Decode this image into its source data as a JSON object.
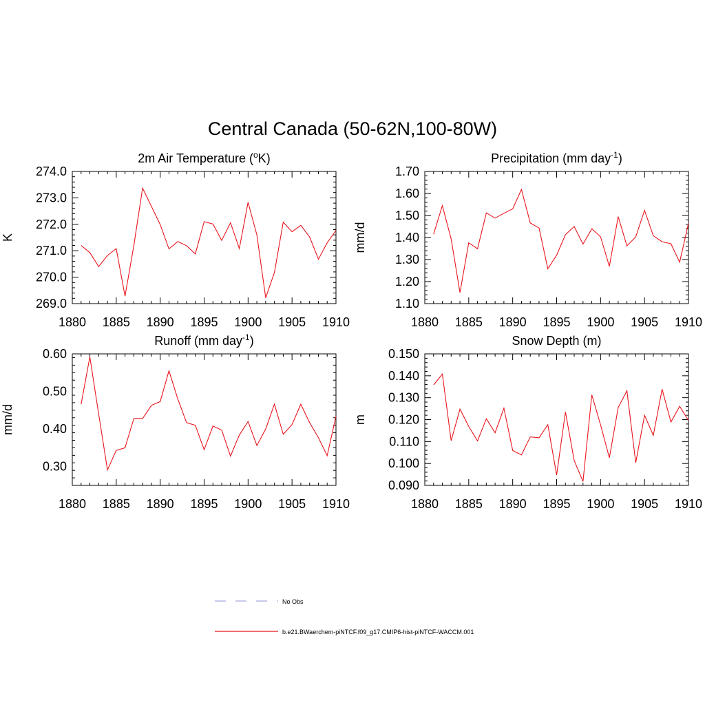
{
  "figure": {
    "title": "Central Canada (50-62N,100-80W)",
    "line_color": "#e8141c",
    "obs_line_color": "#a8a8e0",
    "legend": [
      {
        "label": "No Obs",
        "style": "dashed",
        "color": "#a8a8e0"
      },
      {
        "label": "b.e21.BWaerchem-piNTCF.f09_g17.CMIP6-hist-piNTCF-WACCM.001",
        "style": "solid",
        "color": "#e8141c"
      }
    ]
  },
  "chart_data": [
    {
      "type": "line",
      "title_main": "2m Air Temperature (",
      "title_sup": "o",
      "title_tail": "K)",
      "ylabel": "K",
      "xlim": [
        1880,
        1910
      ],
      "ylim": [
        269.0,
        274.0
      ],
      "xticks": [
        "1880",
        "1885",
        "1890",
        "1895",
        "1900",
        "1905",
        "1910"
      ],
      "yticks": [
        "269.0",
        "270.0",
        "271.0",
        "272.0",
        "273.0",
        "274.0"
      ],
      "x": [
        1881,
        1882,
        1883,
        1884,
        1885,
        1886,
        1887,
        1888,
        1889,
        1890,
        1891,
        1892,
        1893,
        1894,
        1895,
        1896,
        1897,
        1898,
        1899,
        1900,
        1901,
        1902,
        1903,
        1904,
        1905,
        1906,
        1907,
        1908,
        1909,
        1910
      ],
      "values": [
        271.2,
        270.93,
        270.4,
        270.82,
        271.08,
        269.28,
        271.2,
        273.37,
        272.68,
        271.99,
        271.07,
        271.35,
        271.19,
        270.88,
        272.1,
        272.01,
        271.39,
        272.06,
        271.08,
        272.83,
        271.6,
        269.22,
        270.18,
        272.08,
        271.72,
        271.96,
        271.52,
        270.68,
        271.3,
        271.77
      ]
    },
    {
      "type": "line",
      "title_main": "Precipitation (mm day",
      "title_sup": "-1",
      "title_tail": ")",
      "ylabel": "mm/d",
      "xlim": [
        1880,
        1910
      ],
      "ylim": [
        1.1,
        1.7
      ],
      "xticks": [
        "1880",
        "1885",
        "1890",
        "1895",
        "1900",
        "1905",
        "1910"
      ],
      "yticks": [
        "1.10",
        "1.20",
        "1.30",
        "1.40",
        "1.50",
        "1.60",
        "1.70"
      ],
      "x": [
        1881,
        1882,
        1883,
        1884,
        1885,
        1886,
        1887,
        1888,
        1889,
        1890,
        1891,
        1892,
        1893,
        1894,
        1895,
        1896,
        1897,
        1898,
        1899,
        1900,
        1901,
        1902,
        1903,
        1904,
        1905,
        1906,
        1907,
        1908,
        1909,
        1910
      ],
      "values": [
        1.415,
        1.545,
        1.393,
        1.15,
        1.376,
        1.349,
        1.512,
        1.488,
        1.51,
        1.53,
        1.618,
        1.466,
        1.443,
        1.258,
        1.32,
        1.413,
        1.45,
        1.37,
        1.44,
        1.403,
        1.269,
        1.495,
        1.362,
        1.403,
        1.523,
        1.408,
        1.381,
        1.372,
        1.288,
        1.465
      ]
    },
    {
      "type": "line",
      "title_main": "Runoff (mm day",
      "title_sup": "-1",
      "title_tail": ")",
      "ylabel": "mm/d",
      "xlim": [
        1880,
        1910
      ],
      "ylim": [
        0.25,
        0.6
      ],
      "xticks": [
        "1880",
        "1885",
        "1890",
        "1895",
        "1900",
        "1905",
        "1910"
      ],
      "yticks": [
        "0.30",
        "0.40",
        "0.50",
        "0.60"
      ],
      "x": [
        1881,
        1882,
        1883,
        1884,
        1885,
        1886,
        1887,
        1888,
        1889,
        1890,
        1891,
        1892,
        1893,
        1894,
        1895,
        1896,
        1897,
        1898,
        1899,
        1900,
        1901,
        1902,
        1903,
        1904,
        1905,
        1906,
        1907,
        1908,
        1909,
        1910
      ],
      "values": [
        0.466,
        0.592,
        0.44,
        0.291,
        0.343,
        0.35,
        0.428,
        0.428,
        0.463,
        0.473,
        0.555,
        0.48,
        0.417,
        0.41,
        0.345,
        0.408,
        0.397,
        0.328,
        0.384,
        0.42,
        0.356,
        0.4,
        0.466,
        0.386,
        0.412,
        0.466,
        0.417,
        0.377,
        0.329,
        0.434
      ]
    },
    {
      "type": "line",
      "title_main": "Snow Depth (m)",
      "title_sup": "",
      "title_tail": "",
      "ylabel": "m",
      "xlim": [
        1880,
        1910
      ],
      "ylim": [
        0.09,
        0.15
      ],
      "xticks": [
        "1880",
        "1885",
        "1890",
        "1895",
        "1900",
        "1905",
        "1910"
      ],
      "yticks": [
        "0.090",
        "0.100",
        "0.110",
        "0.120",
        "0.130",
        "0.140",
        "0.150"
      ],
      "x": [
        1881,
        1882,
        1883,
        1884,
        1885,
        1886,
        1887,
        1888,
        1889,
        1890,
        1891,
        1892,
        1893,
        1894,
        1895,
        1896,
        1897,
        1898,
        1899,
        1900,
        1901,
        1902,
        1903,
        1904,
        1905,
        1906,
        1907,
        1908,
        1909,
        1910
      ],
      "values": [
        0.1358,
        0.1408,
        0.1104,
        0.1248,
        0.1169,
        0.1103,
        0.1204,
        0.114,
        0.1252,
        0.1059,
        0.1039,
        0.1121,
        0.1117,
        0.1177,
        0.0947,
        0.1235,
        0.1013,
        0.0918,
        0.1313,
        0.1176,
        0.1026,
        0.1255,
        0.1332,
        0.1003,
        0.122,
        0.1128,
        0.1339,
        0.1189,
        0.1261,
        0.1196
      ]
    }
  ]
}
